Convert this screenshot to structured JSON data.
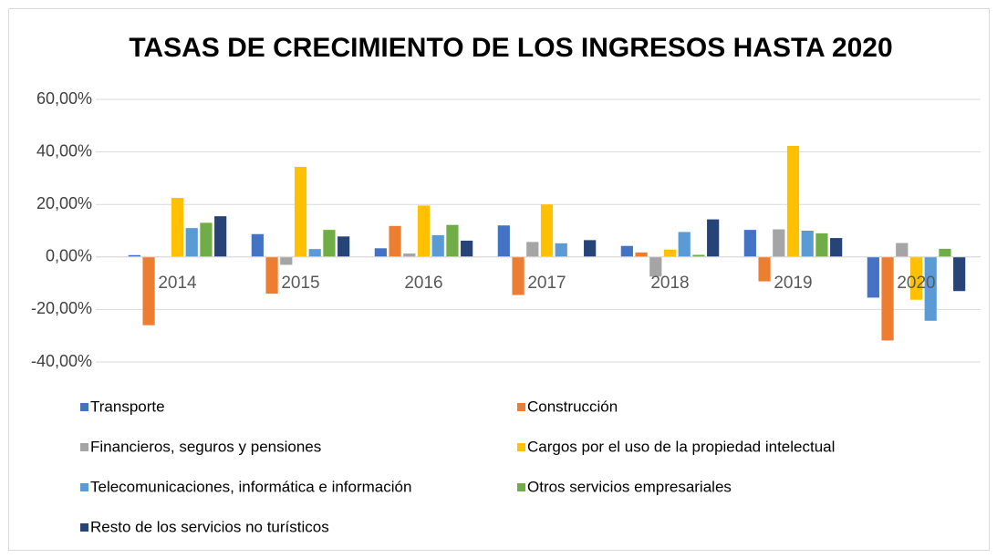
{
  "chart_data": {
    "type": "bar",
    "title": "TASAS DE CRECIMIENTO DE LOS INGRESOS HASTA 2020",
    "categories": [
      "2014",
      "2015",
      "2016",
      "2017",
      "2018",
      "2019",
      "2020"
    ],
    "series": [
      {
        "name": "Transporte",
        "color": "#4472c4",
        "values": [
          0.7,
          8.7,
          3.3,
          12,
          4.2,
          10.3,
          -15.5
        ]
      },
      {
        "name": "Construcción",
        "color": "#ed7d31",
        "values": [
          -26,
          -14,
          11.8,
          -14.5,
          1.7,
          -9.3,
          -31.8
        ]
      },
      {
        "name": "Financieros, seguros y pensiones",
        "color": "#a5a5a5",
        "values": [
          0,
          -3,
          1.3,
          5.7,
          -7.5,
          10.5,
          5.3
        ]
      },
      {
        "name": "Cargos por el uso de la propiedad intelectual",
        "color": "#ffc000",
        "values": [
          22.5,
          34.3,
          19.6,
          20,
          2.8,
          42.3,
          -16.3
        ]
      },
      {
        "name": "Telecomunicaciones, informática e información",
        "color": "#5b9bd5",
        "values": [
          11,
          3,
          8.3,
          5.2,
          9.5,
          10,
          -24.3
        ]
      },
      {
        "name": "Otros servicios empresariales",
        "color": "#70ad47",
        "values": [
          13,
          10.3,
          12.2,
          0,
          0.8,
          9,
          3.1
        ]
      },
      {
        "name": "Resto de los servicios no turísticos",
        "color": "#264478",
        "values": [
          15.5,
          7.8,
          6.2,
          6.4,
          14.3,
          7.2,
          -13
        ]
      }
    ],
    "ylim": [
      -40,
      60
    ],
    "yticks": [
      {
        "value": -40,
        "label": "-40,00%"
      },
      {
        "value": -20,
        "label": "-20,00%"
      },
      {
        "value": 0,
        "label": "0,00%"
      },
      {
        "value": 20,
        "label": "20,00%"
      },
      {
        "value": 40,
        "label": "40,00%"
      },
      {
        "value": 60,
        "label": "60,00%"
      }
    ],
    "grid": true,
    "legend": "bottom"
  }
}
